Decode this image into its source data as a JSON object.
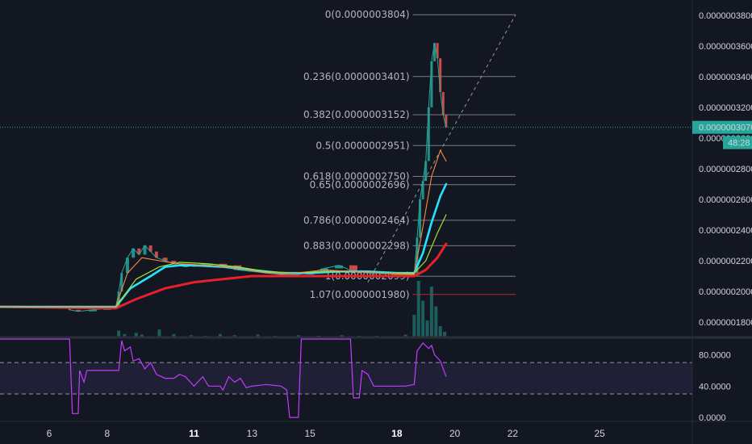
{
  "chart_data": {
    "type": "candlestick",
    "price_axis": {
      "ticks": [
        "0.0000003800",
        "0.0000003600",
        "0.0000003400",
        "0.0000003200",
        "0.0000003000",
        "0.0000002800",
        "0.0000002600",
        "0.0000002400",
        "0.0000002200",
        "0.0000002000",
        "0.0000001800"
      ],
      "tick_values": [
        3.8,
        3.6,
        3.4,
        3.2,
        3.0,
        2.8,
        2.6,
        2.4,
        2.2,
        2.0,
        1.8
      ],
      "range": [
        1.7,
        3.9
      ],
      "unit_note": "x 0.0000001",
      "current_price_label": "0.0000003070",
      "current_price": 3.07,
      "countdown_label": "48:28"
    },
    "time_axis": {
      "ticks": [
        {
          "label": "6",
          "bold": false,
          "day": 6
        },
        {
          "label": "8",
          "bold": false,
          "day": 8
        },
        {
          "label": "11",
          "bold": true,
          "day": 11
        },
        {
          "label": "13",
          "bold": false,
          "day": 13
        },
        {
          "label": "15",
          "bold": false,
          "day": 15
        },
        {
          "label": "18",
          "bold": true,
          "day": 18
        },
        {
          "label": "20",
          "bold": false,
          "day": 20
        },
        {
          "label": "22",
          "bold": false,
          "day": 22
        },
        {
          "label": "25",
          "bold": false,
          "day": 25
        }
      ],
      "day_range": [
        4.3,
        28.2
      ]
    },
    "fib_levels": [
      {
        "label": "0(0.0000003804)",
        "value": 3.804,
        "color": "#787b86"
      },
      {
        "label": "0.236(0.0000003401)",
        "value": 3.401,
        "color": "#787b86"
      },
      {
        "label": "0.382(0.0000003152)",
        "value": 3.152,
        "color": "#787b86"
      },
      {
        "label": "0.5(0.0000002951)",
        "value": 2.951,
        "color": "#787b86"
      },
      {
        "label": "0.618(0.0000002750)",
        "value": 2.75,
        "color": "#787b86"
      },
      {
        "label": "0.65(0.0000002696)",
        "value": 2.696,
        "color": "#787b86"
      },
      {
        "label": "0.786(0.0000002464)",
        "value": 2.464,
        "color": "#787b86"
      },
      {
        "label": "0.883(0.0000002298)",
        "value": 2.298,
        "color": "#787b86"
      },
      {
        "label": "1(0.0000002099)",
        "value": 2.099,
        "color": "#787b86"
      },
      {
        "label": "1.07(0.0000001980)",
        "value": 1.98,
        "color": "#b22833"
      }
    ],
    "fib_day_range": [
      18.55,
      22.1
    ],
    "price_series": {
      "name": "",
      "points": [
        [
          4.3,
          1.9
        ],
        [
          6.6,
          1.9
        ],
        [
          6.7,
          1.88
        ],
        [
          7.0,
          1.87
        ],
        [
          7.5,
          1.88
        ],
        [
          8.0,
          1.89
        ],
        [
          8.3,
          1.9
        ],
        [
          8.4,
          2.0
        ],
        [
          8.5,
          2.12
        ],
        [
          8.7,
          2.22
        ],
        [
          8.9,
          2.28
        ],
        [
          9.1,
          2.24
        ],
        [
          9.3,
          2.3
        ],
        [
          9.5,
          2.26
        ],
        [
          9.7,
          2.22
        ],
        [
          10.0,
          2.2
        ],
        [
          10.3,
          2.18
        ],
        [
          10.7,
          2.16
        ],
        [
          11.0,
          2.17
        ],
        [
          11.5,
          2.18
        ],
        [
          12.0,
          2.17
        ],
        [
          12.5,
          2.14
        ],
        [
          13.0,
          2.13
        ],
        [
          13.5,
          2.12
        ],
        [
          14.0,
          2.11
        ],
        [
          14.5,
          2.11
        ],
        [
          15.0,
          2.12
        ],
        [
          15.5,
          2.15
        ],
        [
          16.0,
          2.17
        ],
        [
          16.5,
          2.13
        ],
        [
          17.0,
          2.12
        ],
        [
          17.5,
          2.12
        ],
        [
          18.0,
          2.11
        ],
        [
          18.6,
          2.11
        ],
        [
          18.7,
          2.35
        ],
        [
          18.8,
          2.6
        ],
        [
          18.9,
          2.72
        ],
        [
          19.0,
          2.85
        ],
        [
          19.1,
          3.2
        ],
        [
          19.2,
          3.5
        ],
        [
          19.3,
          3.62
        ],
        [
          19.4,
          3.52
        ],
        [
          19.5,
          3.3
        ],
        [
          19.6,
          3.15
        ],
        [
          19.7,
          3.07
        ]
      ]
    },
    "moving_averages": [
      {
        "name": "",
        "color": "#e8202a",
        "width": 3,
        "points": [
          [
            4.3,
            1.9
          ],
          [
            8.3,
            1.89
          ],
          [
            9.0,
            1.95
          ],
          [
            10.0,
            2.02
          ],
          [
            11.0,
            2.06
          ],
          [
            12.0,
            2.08
          ],
          [
            13.0,
            2.1
          ],
          [
            14.0,
            2.1
          ],
          [
            15.0,
            2.1
          ],
          [
            16.0,
            2.1
          ],
          [
            17.0,
            2.1
          ],
          [
            18.0,
            2.1
          ],
          [
            18.6,
            2.1
          ],
          [
            19.0,
            2.14
          ],
          [
            19.4,
            2.22
          ],
          [
            19.7,
            2.31
          ]
        ]
      },
      {
        "name": "",
        "color": "#24e3ff",
        "width": 2.6,
        "points": [
          [
            4.3,
            1.9
          ],
          [
            8.3,
            1.9
          ],
          [
            8.8,
            2.02
          ],
          [
            9.5,
            2.1
          ],
          [
            10.0,
            2.16
          ],
          [
            10.5,
            2.17
          ],
          [
            11.0,
            2.17
          ],
          [
            12.0,
            2.16
          ],
          [
            13.0,
            2.14
          ],
          [
            14.0,
            2.12
          ],
          [
            15.0,
            2.12
          ],
          [
            16.0,
            2.13
          ],
          [
            17.0,
            2.13
          ],
          [
            18.0,
            2.12
          ],
          [
            18.6,
            2.12
          ],
          [
            18.9,
            2.25
          ],
          [
            19.2,
            2.45
          ],
          [
            19.5,
            2.62
          ],
          [
            19.7,
            2.7
          ]
        ]
      },
      {
        "name": "",
        "color": "#a6e22e",
        "width": 1.2,
        "points": [
          [
            4.3,
            1.9
          ],
          [
            8.3,
            1.9
          ],
          [
            9.0,
            2.08
          ],
          [
            9.8,
            2.16
          ],
          [
            10.5,
            2.19
          ],
          [
            11.5,
            2.18
          ],
          [
            12.5,
            2.16
          ],
          [
            13.5,
            2.13
          ],
          [
            14.5,
            2.12
          ],
          [
            15.5,
            2.13
          ],
          [
            16.5,
            2.13
          ],
          [
            17.5,
            2.12
          ],
          [
            18.6,
            2.12
          ],
          [
            19.0,
            2.2
          ],
          [
            19.4,
            2.38
          ],
          [
            19.7,
            2.5
          ]
        ]
      },
      {
        "name": "",
        "color": "#ff8a3d",
        "width": 1.1,
        "points": [
          [
            4.3,
            1.9
          ],
          [
            8.3,
            1.9
          ],
          [
            8.7,
            2.12
          ],
          [
            9.2,
            2.22
          ],
          [
            9.8,
            2.2
          ],
          [
            10.5,
            2.18
          ],
          [
            11.5,
            2.17
          ],
          [
            12.5,
            2.15
          ],
          [
            13.5,
            2.12
          ],
          [
            14.5,
            2.12
          ],
          [
            15.5,
            2.14
          ],
          [
            16.5,
            2.13
          ],
          [
            17.5,
            2.12
          ],
          [
            18.6,
            2.11
          ],
          [
            18.9,
            2.42
          ],
          [
            19.2,
            2.75
          ],
          [
            19.5,
            2.92
          ],
          [
            19.7,
            2.85
          ]
        ]
      }
    ],
    "volume": {
      "points": [
        [
          8.4,
          12
        ],
        [
          8.6,
          6
        ],
        [
          9.0,
          8
        ],
        [
          9.2,
          5
        ],
        [
          9.8,
          14
        ],
        [
          10.3,
          6
        ],
        [
          10.9,
          4
        ],
        [
          11.4,
          3
        ],
        [
          11.9,
          6
        ],
        [
          12.4,
          4
        ],
        [
          13.2,
          5
        ],
        [
          13.8,
          3
        ],
        [
          14.6,
          4
        ],
        [
          15.3,
          3
        ],
        [
          16.1,
          4
        ],
        [
          16.7,
          3
        ],
        [
          17.3,
          3
        ],
        [
          18.3,
          5
        ],
        [
          18.6,
          40
        ],
        [
          18.75,
          100
        ],
        [
          18.9,
          65
        ],
        [
          19.05,
          30
        ],
        [
          19.2,
          90
        ],
        [
          19.35,
          55
        ],
        [
          19.5,
          20
        ],
        [
          19.65,
          10
        ]
      ]
    },
    "dashed_projection": {
      "from": [
        17.0,
        2.06
      ],
      "to": [
        22.1,
        3.804
      ]
    },
    "rsi": {
      "ticks": [
        "80.0000",
        "40.0000",
        "0.0000"
      ],
      "tick_values": [
        80,
        40,
        0
      ],
      "range": [
        -5,
        100
      ],
      "overbought": 70,
      "oversold": 30,
      "color": "#c23cff",
      "points": [
        [
          4.3,
          100
        ],
        [
          6.7,
          100
        ],
        [
          6.8,
          5
        ],
        [
          7.0,
          5
        ],
        [
          7.05,
          60
        ],
        [
          7.2,
          45
        ],
        [
          7.3,
          60
        ],
        [
          8.0,
          60
        ],
        [
          8.4,
          60
        ],
        [
          8.5,
          98
        ],
        [
          8.6,
          85
        ],
        [
          8.8,
          90
        ],
        [
          8.9,
          72
        ],
        [
          9.1,
          75
        ],
        [
          9.3,
          62
        ],
        [
          9.5,
          70
        ],
        [
          9.7,
          55
        ],
        [
          10.0,
          50
        ],
        [
          10.3,
          50
        ],
        [
          10.5,
          55
        ],
        [
          10.7,
          52
        ],
        [
          11.0,
          40
        ],
        [
          11.3,
          52
        ],
        [
          11.5,
          40
        ],
        [
          11.9,
          40
        ],
        [
          12.0,
          35
        ],
        [
          12.2,
          52
        ],
        [
          12.4,
          45
        ],
        [
          12.6,
          50
        ],
        [
          12.8,
          38
        ],
        [
          13.0,
          40
        ],
        [
          13.5,
          42
        ],
        [
          14.0,
          40
        ],
        [
          14.2,
          35
        ],
        [
          14.3,
          0
        ],
        [
          14.6,
          0
        ],
        [
          14.7,
          100
        ],
        [
          16.4,
          100
        ],
        [
          16.5,
          25
        ],
        [
          16.7,
          25
        ],
        [
          16.8,
          60
        ],
        [
          17.0,
          55
        ],
        [
          17.2,
          40
        ],
        [
          17.5,
          40
        ],
        [
          17.8,
          40
        ],
        [
          18.0,
          40
        ],
        [
          18.3,
          40
        ],
        [
          18.6,
          42
        ],
        [
          18.7,
          85
        ],
        [
          18.9,
          95
        ],
        [
          19.1,
          88
        ],
        [
          19.2,
          92
        ],
        [
          19.3,
          80
        ],
        [
          19.5,
          72
        ],
        [
          19.7,
          52
        ]
      ]
    }
  }
}
